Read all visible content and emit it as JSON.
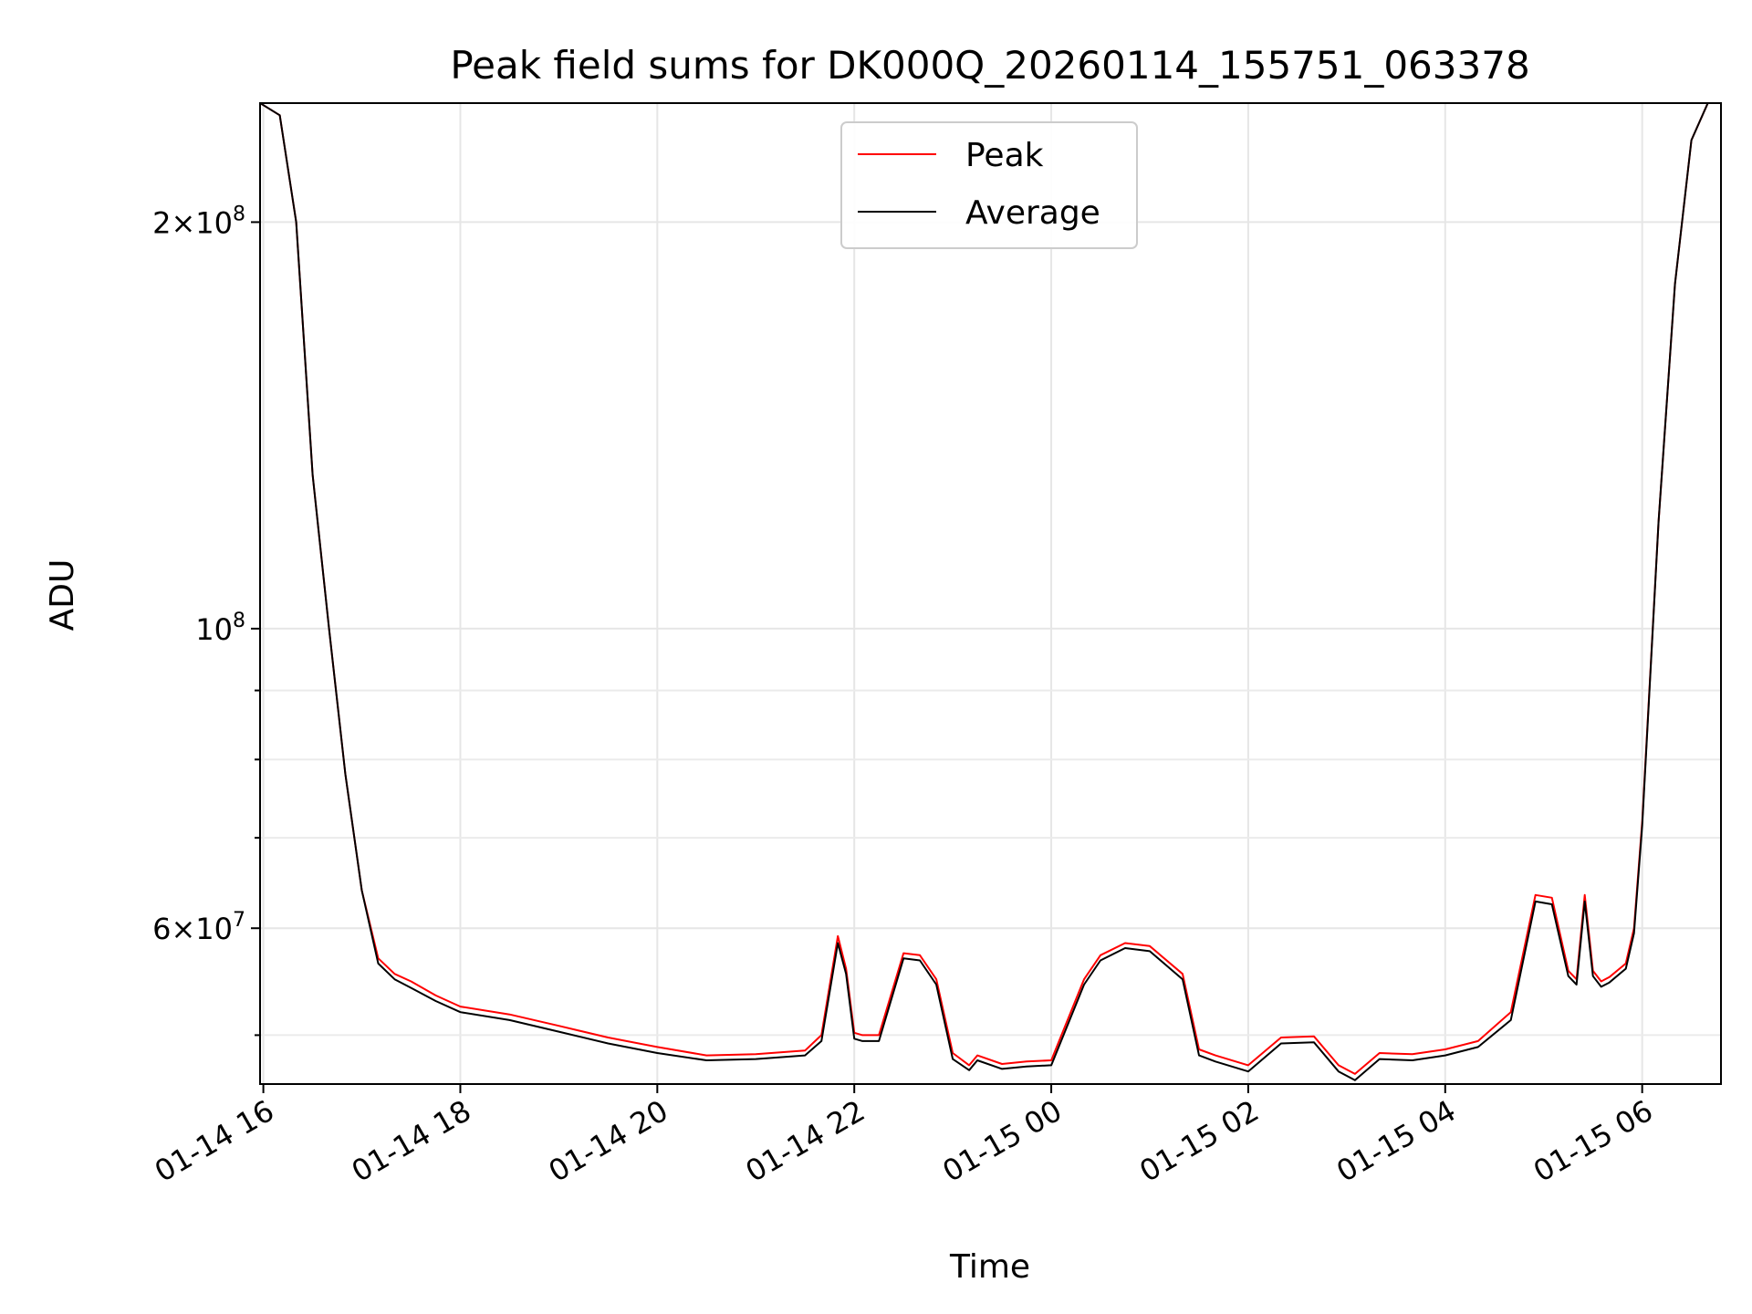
{
  "chart_data": {
    "type": "line",
    "title": "Peak field sums for DK000Q_20260114_155751_063378",
    "xlabel": "Time",
    "ylabel": "ADU",
    "yscale": "log",
    "ylim": [
      46000000,
      245000000
    ],
    "xlim": [
      "2026-01-14 15:58",
      "2026-01-15 06:48"
    ],
    "grid": true,
    "legend": "upper-center",
    "colors": {
      "Peak": "#ff0000",
      "Average": "#000000"
    },
    "x_ticks": [
      {
        "t": "2026-01-14 16:00",
        "label": "01-14 16"
      },
      {
        "t": "2026-01-14 18:00",
        "label": "01-14 18"
      },
      {
        "t": "2026-01-14 20:00",
        "label": "01-14 20"
      },
      {
        "t": "2026-01-14 22:00",
        "label": "01-14 22"
      },
      {
        "t": "2026-01-15 00:00",
        "label": "01-15 00"
      },
      {
        "t": "2026-01-15 02:00",
        "label": "01-15 02"
      },
      {
        "t": "2026-01-15 04:00",
        "label": "01-15 04"
      },
      {
        "t": "2026-01-15 06:00",
        "label": "01-15 06"
      }
    ],
    "y_major_ticks": [
      {
        "value": 200000000,
        "base": "2",
        "exp": "8"
      },
      {
        "value": 100000000,
        "base": "",
        "exp": "8"
      },
      {
        "value": 60000000,
        "base": "6",
        "exp": "7"
      }
    ],
    "y_minor_ticks": [
      50000000,
      70000000,
      80000000,
      90000000
    ],
    "x": [
      "2026-01-14 15:58",
      "2026-01-14 16:10",
      "2026-01-14 16:20",
      "2026-01-14 16:30",
      "2026-01-14 16:40",
      "2026-01-14 16:50",
      "2026-01-14 17:00",
      "2026-01-14 17:10",
      "2026-01-14 17:20",
      "2026-01-14 17:30",
      "2026-01-14 17:45",
      "2026-01-14 18:00",
      "2026-01-14 18:30",
      "2026-01-14 19:00",
      "2026-01-14 19:30",
      "2026-01-14 20:00",
      "2026-01-14 20:30",
      "2026-01-14 21:00",
      "2026-01-14 21:30",
      "2026-01-14 21:40",
      "2026-01-14 21:50",
      "2026-01-14 21:55",
      "2026-01-14 22:00",
      "2026-01-14 22:05",
      "2026-01-14 22:15",
      "2026-01-14 22:30",
      "2026-01-14 22:40",
      "2026-01-14 22:50",
      "2026-01-14 23:00",
      "2026-01-14 23:10",
      "2026-01-14 23:15",
      "2026-01-14 23:30",
      "2026-01-14 23:45",
      "2026-01-15 00:00",
      "2026-01-15 00:20",
      "2026-01-15 00:30",
      "2026-01-15 00:45",
      "2026-01-15 01:00",
      "2026-01-15 01:20",
      "2026-01-15 01:30",
      "2026-01-15 01:40",
      "2026-01-15 02:00",
      "2026-01-15 02:20",
      "2026-01-15 02:40",
      "2026-01-15 02:55",
      "2026-01-15 03:05",
      "2026-01-15 03:20",
      "2026-01-15 03:40",
      "2026-01-15 04:00",
      "2026-01-15 04:20",
      "2026-01-15 04:40",
      "2026-01-15 04:55",
      "2026-01-15 05:05",
      "2026-01-15 05:15",
      "2026-01-15 05:20",
      "2026-01-15 05:25",
      "2026-01-15 05:30",
      "2026-01-15 05:35",
      "2026-01-15 05:40",
      "2026-01-15 05:50",
      "2026-01-15 05:55",
      "2026-01-15 06:00",
      "2026-01-15 06:10",
      "2026-01-15 06:20",
      "2026-01-15 06:30",
      "2026-01-15 06:40",
      "2026-01-15 06:48"
    ],
    "series": [
      {
        "name": "Peak",
        "values": [
          245000000,
          240000000,
          200000000,
          130000000,
          100000000,
          78000000,
          64000000,
          57000000,
          55500000,
          54800000,
          53500000,
          52500000,
          51800000,
          50800000,
          49800000,
          49000000,
          48300000,
          48400000,
          48700000,
          50000000,
          59200000,
          56000000,
          50200000,
          50000000,
          50000000,
          57500000,
          57300000,
          55000000,
          48500000,
          47500000,
          48300000,
          47600000,
          47800000,
          47900000,
          55000000,
          57300000,
          58500000,
          58200000,
          55500000,
          48800000,
          48300000,
          47500000,
          49800000,
          49900000,
          47500000,
          46800000,
          48500000,
          48400000,
          48800000,
          49500000,
          52000000,
          63500000,
          63200000,
          55800000,
          55000000,
          63500000,
          55800000,
          54800000,
          55200000,
          56500000,
          60000000,
          72000000,
          120000000,
          180000000,
          230000000,
          245000000,
          245000000
        ]
      },
      {
        "name": "Average",
        "values": [
          245000000,
          240000000,
          200000000,
          130000000,
          100000000,
          78000000,
          64000000,
          56500000,
          55000000,
          54200000,
          53000000,
          52000000,
          51300000,
          50300000,
          49300000,
          48500000,
          47900000,
          48000000,
          48300000,
          49500000,
          58500000,
          55500000,
          49700000,
          49500000,
          49500000,
          57000000,
          56800000,
          54500000,
          48000000,
          47100000,
          47900000,
          47200000,
          47400000,
          47500000,
          54500000,
          56800000,
          58000000,
          57700000,
          55000000,
          48300000,
          47800000,
          47000000,
          49300000,
          49400000,
          47000000,
          46300000,
          48000000,
          47900000,
          48300000,
          49000000,
          51300000,
          62800000,
          62500000,
          55300000,
          54500000,
          62800000,
          55300000,
          54300000,
          54700000,
          56000000,
          59500000,
          71500000,
          120000000,
          180000000,
          230000000,
          245000000,
          245000000
        ]
      }
    ]
  }
}
